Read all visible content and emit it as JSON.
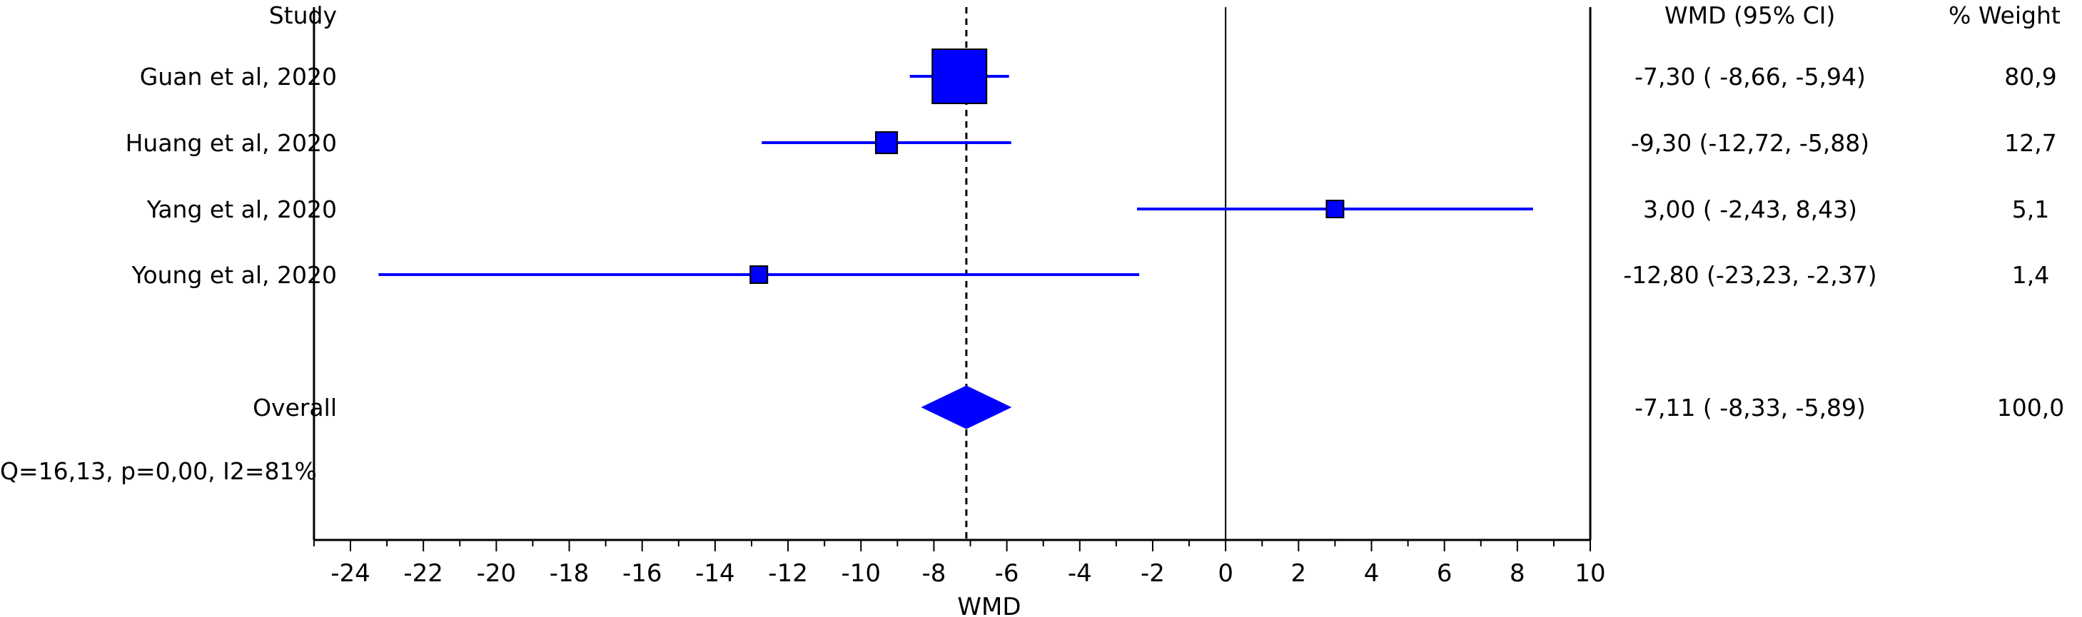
{
  "chart_data": {
    "type": "forest",
    "title": "",
    "xlabel": "WMD",
    "ylabel": "",
    "xlim": [
      -25,
      10
    ],
    "xticks": [
      "-24",
      "-22",
      "-20",
      "-18",
      "-16",
      "-14",
      "-12",
      "-10",
      "-8",
      "-6",
      "-4",
      "-2",
      "0",
      "2",
      "4",
      "6",
      "8",
      "10"
    ],
    "null_line": 0,
    "overall_line": -7.11,
    "headers": {
      "study": "Study",
      "estimate": "WMD (95% CI)",
      "weight": "% Weight"
    },
    "studies": [
      {
        "name": "Guan et al, 2020",
        "estimate": -7.3,
        "lower": -8.66,
        "upper": -5.94,
        "weight": 80.9,
        "ci_text": "-7,30  ( -8,66, -5,94)",
        "weight_text": "80,9"
      },
      {
        "name": "Huang et al, 2020",
        "estimate": -9.3,
        "lower": -12.72,
        "upper": -5.88,
        "weight": 12.7,
        "ci_text": "-9,30  (-12,72, -5,88)",
        "weight_text": "12,7"
      },
      {
        "name": "Yang et al, 2020",
        "estimate": 3.0,
        "lower": -2.43,
        "upper": 8.43,
        "weight": 5.1,
        "ci_text": "3,00  ( -2,43,  8,43)",
        "weight_text": "5,1"
      },
      {
        "name": "Young et al, 2020",
        "estimate": -12.8,
        "lower": -23.23,
        "upper": -2.37,
        "weight": 1.4,
        "ci_text": "-12,80  (-23,23, -2,37)",
        "weight_text": "1,4"
      }
    ],
    "overall": {
      "name": "Overall",
      "estimate": -7.11,
      "lower": -8.33,
      "upper": -5.89,
      "weight": 100.0,
      "ci_text": "-7,11  ( -8,33, -5,89)",
      "weight_text": "100,0"
    },
    "heterogeneity": "Q=16,13, p=0,00, I2=81%",
    "colors": {
      "marker": "#0000ff",
      "line": "#0000ff",
      "axis": "#000000"
    }
  }
}
